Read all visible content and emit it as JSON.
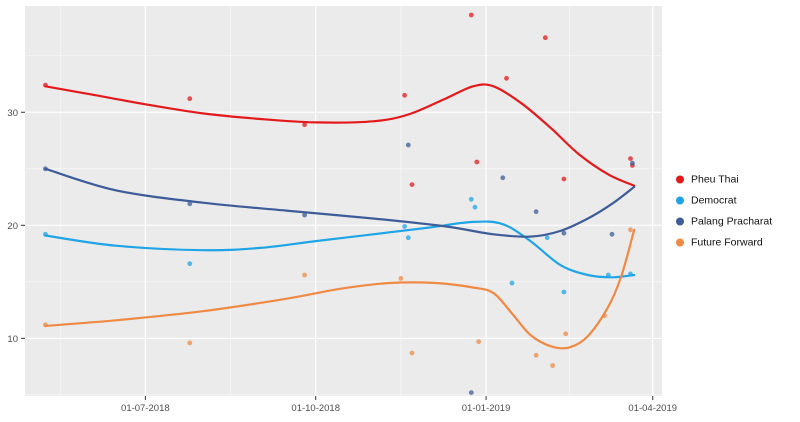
{
  "chart_data": {
    "type": "line",
    "title": "",
    "xlabel": "",
    "ylabel": "",
    "panel_background": "#ebebeb",
    "grid": {
      "major_color": "#ffffff",
      "minor_color": "#ffffff",
      "major_width": 1.2,
      "minor_width": 0.6
    },
    "tick_label_color": "#4d4d4d",
    "legend_position": "right",
    "x_axis": {
      "domain": [
        "2018-04-27",
        "2019-04-06"
      ],
      "tick_dates": [
        "2018-07-01",
        "2018-10-01",
        "2019-01-01",
        "2019-04-01"
      ],
      "tick_labels": [
        "01-07-2018",
        "01-10-2018",
        "01-01-2019",
        "01-04-2019"
      ],
      "minor_dates": [
        "2018-05-16",
        "2018-08-16",
        "2018-11-16",
        "2019-02-15"
      ]
    },
    "y_axis": {
      "domain": [
        4.9,
        39.4
      ],
      "ticks": [
        10,
        20,
        30
      ],
      "minor_ticks": [
        5,
        15,
        25,
        35
      ]
    },
    "series": [
      {
        "name": "Pheu Thai",
        "color": "#e31a1c",
        "line": [
          [
            "2018-05-08",
            32.3
          ],
          [
            "2018-06-01",
            31.6
          ],
          [
            "2018-07-01",
            30.7
          ],
          [
            "2018-08-01",
            29.9
          ],
          [
            "2018-09-01",
            29.4
          ],
          [
            "2018-10-01",
            29.1
          ],
          [
            "2018-11-01",
            29.2
          ],
          [
            "2018-11-20",
            29.8
          ],
          [
            "2018-12-10",
            31.2
          ],
          [
            "2018-12-25",
            32.3
          ],
          [
            "2019-01-05",
            32.3
          ],
          [
            "2019-01-20",
            30.8
          ],
          [
            "2019-02-05",
            28.6
          ],
          [
            "2019-02-20",
            26.3
          ],
          [
            "2019-03-08",
            24.5
          ],
          [
            "2019-03-22",
            23.5
          ]
        ],
        "points": [
          [
            "2018-05-08",
            32.4
          ],
          [
            "2018-07-25",
            31.2
          ],
          [
            "2018-09-25",
            28.9
          ],
          [
            "2018-11-18",
            31.5
          ],
          [
            "2018-11-22",
            23.6
          ],
          [
            "2018-12-24",
            38.6
          ],
          [
            "2018-12-27",
            25.6
          ],
          [
            "2019-01-12",
            33.0
          ],
          [
            "2019-02-02",
            36.6
          ],
          [
            "2019-02-12",
            24.1
          ],
          [
            "2019-03-20",
            25.9
          ],
          [
            "2019-03-21",
            25.3
          ]
        ]
      },
      {
        "name": "Democrat",
        "color": "#1fa4e6",
        "line": [
          [
            "2018-05-08",
            19.1
          ],
          [
            "2018-06-15",
            18.2
          ],
          [
            "2018-08-01",
            17.8
          ],
          [
            "2018-09-01",
            18.0
          ],
          [
            "2018-10-01",
            18.6
          ],
          [
            "2018-11-01",
            19.2
          ],
          [
            "2018-12-01",
            19.8
          ],
          [
            "2018-12-25",
            20.3
          ],
          [
            "2019-01-10",
            20.1
          ],
          [
            "2019-01-25",
            18.6
          ],
          [
            "2019-02-10",
            16.5
          ],
          [
            "2019-02-25",
            15.6
          ],
          [
            "2019-03-10",
            15.4
          ],
          [
            "2019-03-22",
            15.6
          ]
        ],
        "points": [
          [
            "2018-05-08",
            19.2
          ],
          [
            "2018-07-25",
            16.6
          ],
          [
            "2018-11-18",
            19.9
          ],
          [
            "2018-11-20",
            18.9
          ],
          [
            "2018-12-24",
            22.3
          ],
          [
            "2018-12-26",
            21.6
          ],
          [
            "2019-01-15",
            14.9
          ],
          [
            "2019-02-03",
            18.9
          ],
          [
            "2019-02-12",
            14.1
          ],
          [
            "2019-03-08",
            15.6
          ],
          [
            "2019-03-20",
            15.7
          ]
        ]
      },
      {
        "name": "Palang Pracharat",
        "color": "#3e5c98",
        "line": [
          [
            "2018-05-08",
            25.0
          ],
          [
            "2018-06-15",
            23.1
          ],
          [
            "2018-08-01",
            22.0
          ],
          [
            "2018-09-15",
            21.3
          ],
          [
            "2018-11-01",
            20.6
          ],
          [
            "2018-12-10",
            19.9
          ],
          [
            "2019-01-05",
            19.2
          ],
          [
            "2019-01-25",
            19.0
          ],
          [
            "2019-02-10",
            19.5
          ],
          [
            "2019-02-25",
            20.6
          ],
          [
            "2019-03-10",
            21.9
          ],
          [
            "2019-03-22",
            23.4
          ]
        ],
        "points": [
          [
            "2018-05-08",
            25.0
          ],
          [
            "2018-07-25",
            21.9
          ],
          [
            "2018-09-25",
            20.9
          ],
          [
            "2018-11-20",
            27.1
          ],
          [
            "2018-12-24",
            5.2
          ],
          [
            "2019-01-10",
            24.2
          ],
          [
            "2019-01-28",
            21.2
          ],
          [
            "2019-02-12",
            19.3
          ],
          [
            "2019-03-10",
            19.2
          ],
          [
            "2019-03-21",
            25.5
          ]
        ]
      },
      {
        "name": "Future Forward",
        "color": "#ef8a45",
        "line": [
          [
            "2018-05-08",
            11.1
          ],
          [
            "2018-06-15",
            11.6
          ],
          [
            "2018-08-01",
            12.4
          ],
          [
            "2018-09-15",
            13.5
          ],
          [
            "2018-10-15",
            14.4
          ],
          [
            "2018-11-10",
            14.9
          ],
          [
            "2018-12-05",
            14.9
          ],
          [
            "2018-12-25",
            14.5
          ],
          [
            "2019-01-05",
            14.0
          ],
          [
            "2019-01-15",
            12.2
          ],
          [
            "2019-01-25",
            10.3
          ],
          [
            "2019-02-05",
            9.3
          ],
          [
            "2019-02-15",
            9.2
          ],
          [
            "2019-02-25",
            10.2
          ],
          [
            "2019-03-08",
            12.8
          ],
          [
            "2019-03-15",
            15.5
          ],
          [
            "2019-03-22",
            19.6
          ]
        ],
        "points": [
          [
            "2018-05-08",
            11.2
          ],
          [
            "2018-07-25",
            9.6
          ],
          [
            "2018-09-25",
            15.6
          ],
          [
            "2018-11-16",
            15.3
          ],
          [
            "2018-11-22",
            8.7
          ],
          [
            "2018-12-28",
            9.7
          ],
          [
            "2019-01-28",
            8.5
          ],
          [
            "2019-02-06",
            7.6
          ],
          [
            "2019-02-13",
            10.4
          ],
          [
            "2019-03-06",
            12.0
          ],
          [
            "2019-03-20",
            19.6
          ]
        ]
      }
    ]
  }
}
